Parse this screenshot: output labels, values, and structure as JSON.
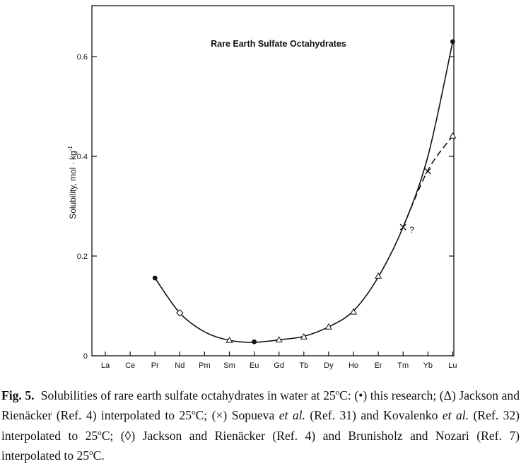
{
  "chart_data": {
    "type": "line",
    "title": "Rare Earth Sulfate Octahydrates",
    "xlabel": "",
    "ylabel": "Solubility, mol · kg",
    "ylabel_exponent": "-1",
    "categories": [
      "La",
      "Ce",
      "Pr",
      "Nd",
      "Pm",
      "Sm",
      "Eu",
      "Gd",
      "Tb",
      "Dy",
      "Ho",
      "Er",
      "Tm",
      "Yb",
      "Lu"
    ],
    "ylim": [
      0,
      0.7
    ],
    "yticks": [
      0,
      0.2,
      0.4,
      0.6
    ],
    "ytick_labels": [
      "0",
      "0.2",
      "0.4",
      "0.6"
    ],
    "grid": false,
    "legend": "none",
    "series": [
      {
        "marker": "filled-circle",
        "points": [
          {
            "x": "Pr",
            "y": 0.156
          },
          {
            "x": "Eu",
            "y": 0.028
          },
          {
            "x": "Lu",
            "y": 0.63
          }
        ]
      },
      {
        "marker": "open-triangle",
        "points": [
          {
            "x": "Sm",
            "y": 0.031
          },
          {
            "x": "Gd",
            "y": 0.032
          },
          {
            "x": "Tb",
            "y": 0.038
          },
          {
            "x": "Dy",
            "y": 0.058
          },
          {
            "x": "Ho",
            "y": 0.088
          },
          {
            "x": "Er",
            "y": 0.16
          },
          {
            "x": "Lu",
            "y": 0.441
          }
        ]
      },
      {
        "marker": "x",
        "points": [
          {
            "x": "Tm",
            "y": 0.258
          },
          {
            "x": "Yb",
            "y": 0.37
          }
        ]
      },
      {
        "marker": "open-diamond",
        "points": [
          {
            "x": "Nd",
            "y": 0.086
          }
        ]
      }
    ],
    "curve": {
      "style": "solid",
      "points": [
        {
          "x": "Pr",
          "y": 0.156
        },
        {
          "x": "Nd",
          "y": 0.086
        },
        {
          "x": "Pm",
          "y": 0.048
        },
        {
          "x": "Sm",
          "y": 0.031
        },
        {
          "x": "Eu",
          "y": 0.027
        },
        {
          "x": "Gd",
          "y": 0.032
        },
        {
          "x": "Tb",
          "y": 0.039
        },
        {
          "x": "Dy",
          "y": 0.058
        },
        {
          "x": "Ho",
          "y": 0.09
        },
        {
          "x": "Er",
          "y": 0.158
        },
        {
          "x": "Tm",
          "y": 0.258
        },
        {
          "x": "Yb",
          "y": 0.4
        },
        {
          "x": "Lu",
          "y": 0.63
        }
      ]
    },
    "dashed_curve": {
      "style": "dashed",
      "points": [
        {
          "x": "Tm",
          "y": 0.258
        },
        {
          "x": "Yb",
          "y": 0.372
        },
        {
          "x": "Lu",
          "y": 0.441
        }
      ]
    },
    "annotations": [
      {
        "text": "?",
        "x": "Tm",
        "y": 0.255
      }
    ]
  },
  "caption": {
    "label": "Fig. 5.",
    "t1": "Solubilities of rare earth sulfate octahydrates in water at 25",
    "deg1": "o",
    "t2": "C: (",
    "sym_this": "•",
    "t3": ") this research;",
    "t4": "(",
    "sym_jr": "Δ",
    "t5": ") Jackson and Rienäcker (Ref. 4) interpolated to 25",
    "deg2": "o",
    "t6": "C; (",
    "sym_x": "×",
    "t7": ") Sopueva",
    "etal1": "et al.",
    "t8": "(Ref. 31)",
    "t9": "and Kovalenko",
    "etal2": "et al.",
    "t10": "(Ref. 32) interpolated to 25",
    "deg3": "o",
    "t11": "C; (",
    "sym_diamond": "◊",
    "t12": ") Jackson and Rienäcker (Ref. 4)",
    "t13": "and Brunisholz and Nozari (Ref. 7) interpolated to 25",
    "deg4": "o",
    "t14": "C."
  }
}
